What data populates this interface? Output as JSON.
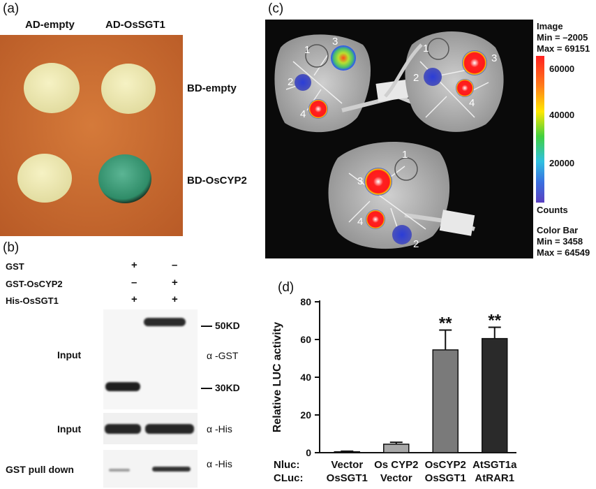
{
  "panel_a": {
    "label": "(a)",
    "col_headers": [
      "AD-empty",
      "AD-OsSGT1"
    ],
    "row_labels": [
      "BD-empty",
      "BD-OsCYP2"
    ],
    "plate_color": "#c86a30",
    "colony_color": "#efeab0",
    "positive_colony_color": "#3a9a76"
  },
  "panel_b": {
    "label": "(b)",
    "reagents": [
      {
        "name": "GST",
        "lane1": "+",
        "lane2": "–"
      },
      {
        "name": "GST-OsCYP2",
        "lane1": "–",
        "lane2": "+"
      },
      {
        "name": "His-OsSGT1",
        "lane1": "+",
        "lane2": "+"
      }
    ],
    "blot_labels": [
      "Input",
      "Input",
      "GST pull down"
    ],
    "markers": [
      "50KD",
      "30KD"
    ],
    "antibodies": [
      "α -GST",
      "α -His",
      "α -His"
    ]
  },
  "panel_c": {
    "label": "(c)",
    "image_info": [
      "Image",
      "Min = –2005",
      "Max = 69151"
    ],
    "scale_ticks": [
      "60000",
      "40000",
      "20000"
    ],
    "scale_unit": "Counts",
    "color_bar_info": [
      "Color Bar",
      "Min = 3458",
      "Max = 64549"
    ],
    "spot_numbers": [
      "1",
      "2",
      "3",
      "4"
    ]
  },
  "panel_d": {
    "label": "(d)",
    "row_labels": [
      "Nluc:",
      "CLuc:"
    ]
  },
  "chart_data": {
    "type": "bar",
    "categories": [
      [
        "Vector",
        "OsSGT1"
      ],
      [
        "Os CYP2",
        "Vector"
      ],
      [
        "OsCYP2",
        "OsSGT1"
      ],
      [
        "AtSGT1a",
        "AtRAR1"
      ]
    ],
    "values": [
      0.5,
      4.5,
      54.5,
      60.5
    ],
    "errors": [
      0.3,
      1.0,
      10.5,
      6.0
    ],
    "significance": [
      "",
      "",
      "**",
      "**"
    ],
    "bar_colors": [
      "#d4d4d4",
      "#a8a8a8",
      "#7a7a7a",
      "#2a2a2a"
    ],
    "ylabel": "Relative LUC activity",
    "ylim": [
      0,
      80
    ],
    "yticks": [
      0,
      20,
      40,
      60,
      80
    ],
    "grid": false
  }
}
